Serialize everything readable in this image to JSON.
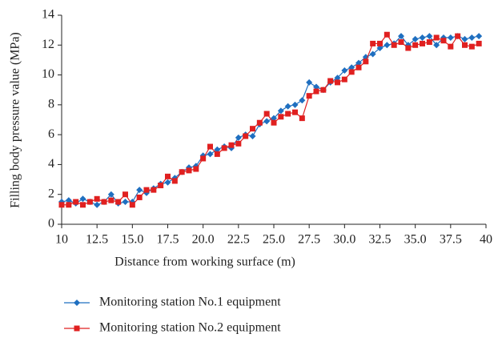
{
  "chart_data": {
    "type": "line",
    "xlabel": "Distance from working surface (m)",
    "ylabel": "Filling body pressure value (MPa)",
    "x": [
      10,
      10.5,
      11,
      11.5,
      12,
      12.5,
      13,
      13.5,
      14,
      14.5,
      15,
      15.5,
      16,
      16.5,
      17,
      17.5,
      18,
      18.5,
      19,
      19.5,
      20,
      20.5,
      21,
      21.5,
      22,
      22.5,
      23,
      23.5,
      24,
      24.5,
      25,
      25.5,
      26,
      26.5,
      27,
      27.5,
      28,
      28.5,
      29,
      29.5,
      30,
      30.5,
      31,
      31.5,
      32,
      32.5,
      33,
      33.5,
      34,
      34.5,
      35,
      35.5,
      36,
      36.5,
      37,
      37.5,
      38,
      38.5,
      39,
      39.5
    ],
    "series": [
      {
        "name": "Monitoring station No.1 equipment",
        "color": "#1f6fc0",
        "marker": "diamond",
        "values": [
          1.5,
          1.6,
          1.4,
          1.7,
          1.5,
          1.3,
          1.5,
          2.0,
          1.4,
          1.5,
          1.5,
          2.3,
          2.1,
          2.4,
          2.7,
          2.8,
          3.1,
          3.5,
          3.8,
          3.9,
          4.6,
          4.7,
          5.0,
          5.2,
          5.1,
          5.8,
          6.0,
          5.9,
          6.7,
          6.9,
          7.1,
          7.6,
          7.9,
          8.0,
          8.3,
          9.5,
          9.2,
          9.0,
          9.5,
          9.8,
          10.3,
          10.5,
          10.8,
          11.2,
          11.4,
          11.8,
          12.0,
          12.1,
          12.6,
          12.0,
          12.4,
          12.5,
          12.6,
          12.0,
          12.5,
          12.5,
          12.6,
          12.4,
          12.5,
          12.6
        ]
      },
      {
        "name": "Monitoring station No.2 equipment",
        "color": "#e02020",
        "marker": "square",
        "values": [
          1.3,
          1.3,
          1.5,
          1.3,
          1.5,
          1.7,
          1.5,
          1.6,
          1.5,
          2.0,
          1.3,
          1.8,
          2.3,
          2.3,
          2.6,
          3.2,
          2.9,
          3.5,
          3.6,
          3.7,
          4.4,
          5.2,
          4.7,
          5.1,
          5.3,
          5.4,
          5.9,
          6.4,
          6.8,
          7.4,
          6.8,
          7.2,
          7.4,
          7.5,
          7.1,
          8.6,
          8.9,
          9.0,
          9.6,
          9.5,
          9.7,
          10.2,
          10.5,
          10.9,
          12.1,
          12.1,
          12.7,
          12.0,
          12.2,
          11.8,
          12.0,
          12.1,
          12.2,
          12.5,
          12.3,
          11.9,
          12.6,
          12.0,
          11.9,
          12.1
        ]
      }
    ],
    "xlim": [
      10,
      40
    ],
    "xticks": [
      10,
      12.5,
      {
        "value": 15,
        "label": "15.0"
      },
      17.5,
      {
        "value": 20,
        "label": "20.0"
      },
      22.5,
      {
        "value": 25,
        "label": "25.0"
      },
      27.5,
      {
        "value": 30,
        "label": "30.0"
      },
      32.5,
      {
        "value": 35,
        "label": "35.0"
      },
      37.5,
      40
    ],
    "ylim": [
      0,
      14
    ],
    "yticks": [
      0,
      2,
      4,
      6,
      8,
      10,
      12,
      14
    ],
    "grid": false,
    "legend": "bottom"
  }
}
